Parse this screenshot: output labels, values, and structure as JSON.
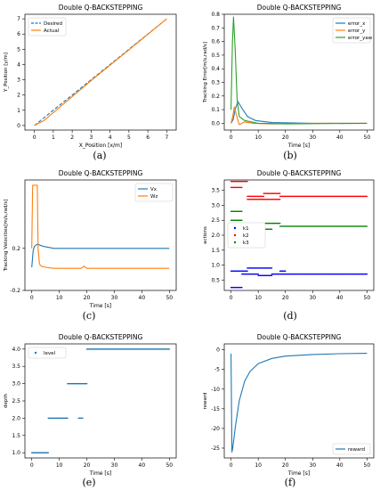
{
  "figure": {
    "sublabels": [
      "(a)",
      "(b)",
      "(c)",
      "(d)",
      "(e)",
      "(f)"
    ]
  },
  "chart_data": [
    {
      "type": "line",
      "title": "Double Q-BACKSTEPPING",
      "xlabel": "X_Position [x/m]",
      "ylabel": "Y_Position [y/m]",
      "xlim": [
        -0.5,
        7.5
      ],
      "ylim": [
        -0.3,
        7.3
      ],
      "xticks": [
        0,
        1,
        2,
        3,
        4,
        5,
        6,
        7
      ],
      "yticks": [
        0,
        1,
        2,
        3,
        4,
        5,
        6,
        7
      ],
      "legend": "upper left",
      "series": [
        {
          "name": "Desired",
          "color": "#1f77b4",
          "dashed": true,
          "x": [
            0,
            7
          ],
          "y": [
            0,
            7
          ]
        },
        {
          "name": "Actual",
          "color": "#ff7f0e",
          "dashed": false,
          "x": [
            0,
            0.5,
            1.5,
            3,
            5,
            7
          ],
          "y": [
            0,
            0.32,
            1.37,
            2.95,
            4.97,
            7
          ]
        }
      ]
    },
    {
      "type": "line",
      "title": "Double Q-BACKSTEPPING",
      "xlabel": "Time [s]",
      "ylabel": "Tracking Error[m/s,rad/s]",
      "xlim": [
        -2.5,
        52.5
      ],
      "ylim": [
        -0.05,
        0.8
      ],
      "xticks": [
        0,
        10,
        20,
        30,
        40,
        50
      ],
      "yticks": [
        0.0,
        0.1,
        0.2,
        0.3,
        0.4,
        0.5,
        0.6,
        0.7,
        0.8
      ],
      "legend": "upper right",
      "series": [
        {
          "name": "error_x",
          "color": "#1f77b4",
          "x": [
            0,
            0.8,
            1.5,
            2.5,
            4,
            6,
            9,
            15,
            30,
            50
          ],
          "y": [
            0.0,
            0.03,
            0.1,
            0.16,
            0.11,
            0.05,
            0.02,
            0.005,
            0.0,
            0.0
          ]
        },
        {
          "name": "error_y",
          "color": "#ff7f0e",
          "x": [
            0,
            0.6,
            1.2,
            2,
            3,
            5,
            8,
            15,
            30,
            50
          ],
          "y": [
            0.0,
            0.05,
            0.12,
            0.06,
            -0.01,
            0.01,
            0.0,
            -0.005,
            0.0,
            0.0
          ]
        },
        {
          "name": "error_yaw",
          "color": "#2ca02c",
          "x": [
            0,
            0.5,
            0.9,
            1.5,
            2.2,
            3,
            5,
            10,
            20,
            50
          ],
          "y": [
            0.1,
            0.6,
            0.78,
            0.55,
            0.18,
            0.05,
            0.02,
            0.0,
            -0.005,
            0.0
          ]
        }
      ]
    },
    {
      "type": "line",
      "title": "Double Q-BACKSTEPPING",
      "xlabel": "Time [s]",
      "ylabel": "Tracking Velocities[m/s,rad/s]",
      "xlim": [
        -2.5,
        52.5
      ],
      "ylim": [
        -0.2,
        0.85
      ],
      "xticks": [
        0,
        10,
        20,
        30,
        40,
        50
      ],
      "yticks": [
        -0.2,
        0.2
      ],
      "legend": "upper right",
      "series": [
        {
          "name": "Vx",
          "color": "#1f77b4",
          "x": [
            0,
            0.5,
            1,
            2,
            3,
            4,
            6,
            8,
            10,
            20,
            30,
            40,
            50
          ],
          "y": [
            0.02,
            0.18,
            0.22,
            0.24,
            0.23,
            0.22,
            0.21,
            0.2,
            0.2,
            0.2,
            0.2,
            0.2,
            0.2
          ]
        },
        {
          "name": "Wz",
          "color": "#ff7f0e",
          "x": [
            0,
            0.3,
            0.6,
            2.0,
            2.3,
            2.8,
            3.5,
            5,
            8,
            18,
            19,
            20,
            30,
            40,
            50
          ],
          "y": [
            0.2,
            0.8,
            0.8,
            0.8,
            0.2,
            0.05,
            0.03,
            0.02,
            0.01,
            0.01,
            0.03,
            0.01,
            0.01,
            0.01,
            0.01
          ]
        }
      ]
    },
    {
      "type": "scatter",
      "title": "Double Q-BACKSTEPPING",
      "xlabel": "",
      "ylabel": "actions",
      "xlim": [
        -2.5,
        52.5
      ],
      "ylim": [
        0.15,
        3.85
      ],
      "xticks": [
        0,
        10,
        20,
        30,
        40,
        50
      ],
      "yticks": [
        0.5,
        1.0,
        1.5,
        2.0,
        2.5,
        3.0,
        3.5
      ],
      "legend": "center left",
      "series": [
        {
          "name": "k1",
          "color": "#0000ff",
          "segments": [
            [
              0,
              6,
              0.8
            ],
            [
              0,
              4,
              0.25
            ],
            [
              4,
              10,
              0.7
            ],
            [
              6,
              15,
              0.9
            ],
            [
              10,
              15,
              0.65
            ],
            [
              15,
              50,
              0.7
            ],
            [
              18,
              20,
              0.8
            ]
          ]
        },
        {
          "name": "k2",
          "color": "#ff0000",
          "segments": [
            [
              0,
              6,
              3.8
            ],
            [
              0,
              4,
              3.6
            ],
            [
              6,
              12,
              3.2
            ],
            [
              6,
              12,
              3.3
            ],
            [
              12,
              18,
              3.4
            ],
            [
              12,
              18,
              3.2
            ],
            [
              18,
              50,
              3.3
            ]
          ]
        },
        {
          "name": "k3",
          "color": "#008000",
          "segments": [
            [
              0,
              4,
              2.8
            ],
            [
              0,
              4,
              2.5
            ],
            [
              4,
              10,
              2.1
            ],
            [
              6,
              12,
              2.3
            ],
            [
              10,
              15,
              2.2
            ],
            [
              12,
              18,
              2.4
            ],
            [
              18,
              50,
              2.3
            ]
          ]
        }
      ]
    },
    {
      "type": "scatter",
      "title": "Double Q-BACKSTEPPING",
      "xlabel": "Time [s]",
      "ylabel": "depth",
      "xlim": [
        -2.5,
        52.5
      ],
      "ylim": [
        0.85,
        4.15
      ],
      "xticks": [
        0,
        10,
        20,
        30,
        40,
        50
      ],
      "yticks": [
        1.0,
        1.5,
        2.0,
        2.5,
        3.0,
        3.5,
        4.0
      ],
      "legend": "upper left",
      "series": [
        {
          "name": "level",
          "color": "#1f77b4",
          "segments": [
            [
              0,
              6,
              1.0
            ],
            [
              6,
              13,
              2.0
            ],
            [
              17,
              18.5,
              2.0
            ],
            [
              13,
              20,
              3.0
            ],
            [
              20,
              50,
              4.0
            ]
          ]
        }
      ]
    },
    {
      "type": "line",
      "title": "Double Q-BACKSTEPPING",
      "xlabel": "Time [s]",
      "ylabel": "reward",
      "xlim": [
        -2.5,
        52.5
      ],
      "ylim": [
        -27.5,
        1.5
      ],
      "xticks": [
        0,
        10,
        20,
        30,
        40,
        50
      ],
      "yticks": [
        0,
        -5,
        -10,
        -15,
        -20,
        -25
      ],
      "legend": "lower right",
      "series": [
        {
          "name": "reward",
          "color": "#1f77b4",
          "x": [
            0,
            0.3,
            0.6,
            1.5,
            3,
            5,
            7,
            10,
            15,
            20,
            30,
            40,
            50
          ],
          "y": [
            -1,
            -26,
            -25,
            -20,
            -13,
            -8,
            -5.5,
            -3.5,
            -2.2,
            -1.6,
            -1.2,
            -1.0,
            -0.9
          ]
        }
      ]
    }
  ]
}
